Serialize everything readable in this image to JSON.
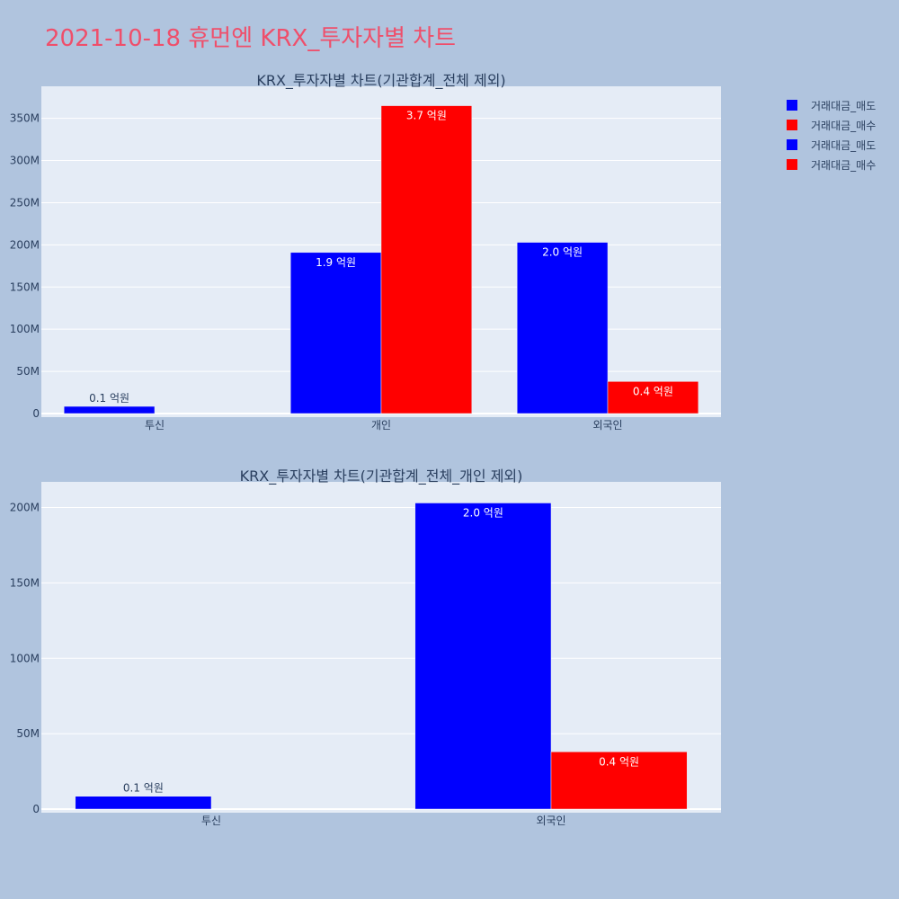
{
  "title": "2021-10-18 휴먼엔 KRX_투자자별 차트",
  "colors": {
    "background": "#b0c4de",
    "plot_bg": "#e5ecf6",
    "sell": "#0000ff",
    "buy": "#ff0000",
    "title": "#ef4f6b"
  },
  "legend": [
    {
      "label": "거래대금_매도",
      "color": "#0000ff"
    },
    {
      "label": "거래대금_매수",
      "color": "#ff0000"
    },
    {
      "label": "거래대금_매도",
      "color": "#0000ff"
    },
    {
      "label": "거래대금_매수",
      "color": "#ff0000"
    }
  ],
  "chart_data": [
    {
      "type": "bar",
      "title": "KRX_투자자별 차트(기관합계_전체 제외)",
      "categories": [
        "투신",
        "개인",
        "외국인"
      ],
      "series": [
        {
          "name": "거래대금_매도",
          "values": [
            8500000,
            191000000,
            203000000
          ],
          "labels": [
            "0.1 억원",
            "1.9 억원",
            "2.0 억원"
          ]
        },
        {
          "name": "거래대금_매수",
          "values": [
            0,
            365000000,
            38000000
          ],
          "labels": [
            "",
            "3.7 억원",
            "0.4 억원"
          ]
        }
      ],
      "ylim": [
        0,
        388000000
      ],
      "yticks": [
        0,
        50000000,
        100000000,
        150000000,
        200000000,
        250000000,
        300000000,
        350000000
      ],
      "ytick_labels": [
        "0",
        "50M",
        "100M",
        "150M",
        "200M",
        "250M",
        "300M",
        "350M"
      ]
    },
    {
      "type": "bar",
      "title": "KRX_투자자별 차트(기관합계_전체_개인 제외)",
      "categories": [
        "투신",
        "외국인"
      ],
      "series": [
        {
          "name": "거래대금_매도",
          "values": [
            8500000,
            203000000
          ],
          "labels": [
            "0.1 억원",
            "2.0 억원"
          ]
        },
        {
          "name": "거래대금_매수",
          "values": [
            0,
            38000000
          ],
          "labels": [
            "",
            "0.4 억원"
          ]
        }
      ],
      "ylim": [
        0,
        217000000
      ],
      "yticks": [
        0,
        50000000,
        100000000,
        150000000,
        200000000
      ],
      "ytick_labels": [
        "0",
        "50M",
        "100M",
        "150M",
        "200M"
      ]
    }
  ]
}
